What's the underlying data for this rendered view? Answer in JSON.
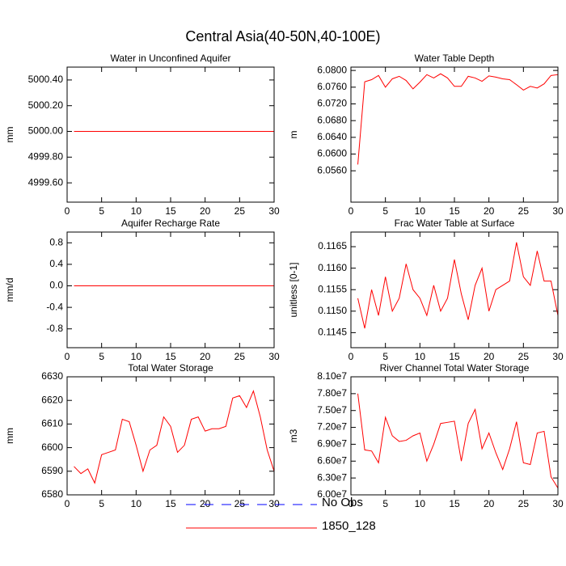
{
  "title": "Central Asia(40-50N,40-100E)",
  "legend": [
    {
      "name": "No Obs",
      "color": "#0000ff",
      "dashed": true
    },
    {
      "name": "1850_128",
      "color": "#ff0000",
      "dashed": false
    }
  ],
  "chart_data": [
    {
      "type": "line",
      "title": "Water in Unconfined Aquifer",
      "y_label": "mm",
      "color": "#ff0000",
      "x": [
        1,
        2,
        3,
        4,
        5,
        6,
        7,
        8,
        9,
        10,
        11,
        12,
        13,
        14,
        15,
        16,
        17,
        18,
        19,
        20,
        21,
        22,
        23,
        24,
        25,
        26,
        27,
        28,
        29,
        30
      ],
      "values": [
        5000,
        5000,
        5000,
        5000,
        5000,
        5000,
        5000,
        5000,
        5000,
        5000,
        5000,
        5000,
        5000,
        5000,
        5000,
        5000,
        5000,
        5000,
        5000,
        5000,
        5000,
        5000,
        5000,
        5000,
        5000,
        5000,
        5000,
        5000,
        5000,
        5000
      ],
      "xlim": [
        0,
        30
      ],
      "xticks": [
        0,
        5,
        10,
        15,
        20,
        25,
        30
      ],
      "ylim": [
        4999.45,
        5000.5
      ],
      "yticks": [
        {
          "value": 4999.6,
          "label": "4999.60"
        },
        {
          "value": 4999.8,
          "label": "4999.80"
        },
        {
          "value": 5000,
          "label": "5000.00"
        },
        {
          "value": 5000.2,
          "label": "5000.20"
        },
        {
          "value": 5000.4,
          "label": "5000.40"
        }
      ]
    },
    {
      "type": "line",
      "title": "Water Table Depth",
      "y_label": "m",
      "color": "#ff0000",
      "x": [
        1,
        2,
        3,
        4,
        5,
        6,
        7,
        8,
        9,
        10,
        11,
        12,
        13,
        14,
        15,
        16,
        17,
        18,
        19,
        20,
        21,
        22,
        23,
        24,
        25,
        26,
        27,
        28,
        29,
        30
      ],
      "values": [
        6.0575,
        6.0773,
        6.0778,
        6.0788,
        6.076,
        6.078,
        6.0786,
        6.0776,
        6.0756,
        6.0772,
        6.079,
        6.0782,
        6.0792,
        6.0782,
        6.0762,
        6.0762,
        6.0786,
        6.0782,
        6.0774,
        6.0787,
        6.0784,
        6.078,
        6.0778,
        6.0766,
        6.0753,
        6.0762,
        6.0758,
        6.0768,
        6.0788,
        6.079
      ],
      "xlim": [
        0,
        30
      ],
      "xticks": [
        0,
        5,
        10,
        15,
        20,
        25,
        30
      ],
      "ylim": [
        6.0485,
        6.0808
      ],
      "yticks": [
        {
          "value": 6.056,
          "label": "6.0560"
        },
        {
          "value": 6.06,
          "label": "6.0600"
        },
        {
          "value": 6.064,
          "label": "6.0640"
        },
        {
          "value": 6.068,
          "label": "6.0680"
        },
        {
          "value": 6.072,
          "label": "6.0720"
        },
        {
          "value": 6.076,
          "label": "6.0760"
        },
        {
          "value": 6.08,
          "label": "6.0800"
        }
      ]
    },
    {
      "type": "line",
      "title": "Aquifer Recharge Rate",
      "y_label": "mm/d",
      "color": "#ff0000",
      "x": [
        1,
        2,
        3,
        4,
        5,
        6,
        7,
        8,
        9,
        10,
        11,
        12,
        13,
        14,
        15,
        16,
        17,
        18,
        19,
        20,
        21,
        22,
        23,
        24,
        25,
        26,
        27,
        28,
        29,
        30
      ],
      "values": [
        0,
        0,
        0,
        0,
        0,
        0,
        0,
        0,
        0,
        0,
        0,
        0,
        0,
        0,
        0,
        0,
        0,
        0,
        0,
        0,
        0,
        0,
        0,
        0,
        0,
        0,
        0,
        0,
        0,
        0
      ],
      "xlim": [
        0,
        30
      ],
      "xticks": [
        0,
        5,
        10,
        15,
        20,
        25,
        30
      ],
      "ylim": [
        -1.15,
        1.0
      ],
      "yticks": [
        -0.8,
        -0.4,
        {
          "value": 0,
          "label": "0.0"
        },
        0.4,
        0.8
      ]
    },
    {
      "type": "line",
      "title": "Frac Water Table at Surface",
      "y_label": "unitless [0-1]",
      "color": "#ff0000",
      "x": [
        1,
        2,
        3,
        4,
        5,
        6,
        7,
        8,
        9,
        10,
        11,
        12,
        13,
        14,
        15,
        16,
        17,
        18,
        19,
        20,
        21,
        22,
        23,
        24,
        25,
        26,
        27,
        28,
        29,
        30
      ],
      "values": [
        0.1153,
        0.1146,
        0.1155,
        0.1149,
        0.1158,
        0.115,
        0.1153,
        0.1161,
        0.1155,
        0.1153,
        0.1149,
        0.1156,
        0.115,
        0.1153,
        0.1162,
        0.1154,
        0.1148,
        0.1156,
        0.116,
        0.115,
        0.1155,
        0.1156,
        0.1157,
        0.1166,
        0.1158,
        0.1156,
        0.1164,
        0.1157,
        0.1157,
        0.1149
      ],
      "xlim": [
        0,
        30
      ],
      "xticks": [
        0,
        5,
        10,
        15,
        20,
        25,
        30
      ],
      "ylim": [
        0.11415,
        0.11684
      ],
      "yticks": [
        0.1145,
        {
          "value": 0.115,
          "label": "0.1150"
        },
        0.1155,
        {
          "value": 0.116,
          "label": "0.1160"
        },
        0.1165
      ]
    },
    {
      "type": "line",
      "title": "Total Water Storage",
      "y_label": "mm",
      "color": "#ff0000",
      "x": [
        1,
        2,
        3,
        4,
        5,
        6,
        7,
        8,
        9,
        10,
        11,
        12,
        13,
        14,
        15,
        16,
        17,
        18,
        19,
        20,
        21,
        22,
        23,
        24,
        25,
        26,
        27,
        28,
        29,
        30
      ],
      "values": [
        6592,
        6589,
        6591,
        6585,
        6597,
        6598,
        6599,
        6612,
        6611,
        6601,
        6590,
        6599,
        6601,
        6613,
        6609,
        6598,
        6601,
        6612,
        6613,
        6607,
        6608,
        6608,
        6609,
        6621,
        6622,
        6617,
        6624,
        6613,
        6599,
        6590
      ],
      "xlim": [
        0,
        30
      ],
      "xticks": [
        0,
        5,
        10,
        15,
        20,
        25,
        30
      ],
      "ylim": [
        6580,
        6630
      ],
      "yticks": [
        6580,
        6590,
        6600,
        6610,
        6620,
        6630
      ]
    },
    {
      "type": "line",
      "title": "River Channel Total Water Storage",
      "y_label": "m3",
      "color": "#ff0000",
      "x": [
        1,
        2,
        3,
        4,
        5,
        6,
        7,
        8,
        9,
        10,
        11,
        12,
        13,
        14,
        15,
        16,
        17,
        18,
        19,
        20,
        21,
        22,
        23,
        24,
        25,
        26,
        27,
        28,
        29,
        30
      ],
      "values": [
        78000000,
        68000000,
        67800000,
        65700000,
        73800000,
        70500000,
        69500000,
        69700000,
        70500000,
        71000000,
        66000000,
        69000000,
        72700000,
        72900000,
        73100000,
        66000000,
        72700000,
        75200000,
        68200000,
        71000000,
        67500000,
        64500000,
        68200000,
        73000000,
        65700000,
        65400000,
        71000000,
        71300000,
        63200000,
        61200000
      ],
      "xlim": [
        0,
        30
      ],
      "xticks": [
        0,
        5,
        10,
        15,
        20,
        25,
        30
      ],
      "ylim": [
        60000000,
        81000000
      ],
      "yticks": [
        {
          "value": 60000000,
          "label": "6.00e7"
        },
        {
          "value": 63000000,
          "label": "6.30e7"
        },
        {
          "value": 66000000,
          "label": "6.60e7"
        },
        {
          "value": 69000000,
          "label": "6.90e7"
        },
        {
          "value": 72000000,
          "label": "7.20e7"
        },
        {
          "value": 75000000,
          "label": "7.50e7"
        },
        {
          "value": 78000000,
          "label": "7.80e7"
        },
        {
          "value": 81000000,
          "label": "8.10e7"
        }
      ]
    }
  ]
}
